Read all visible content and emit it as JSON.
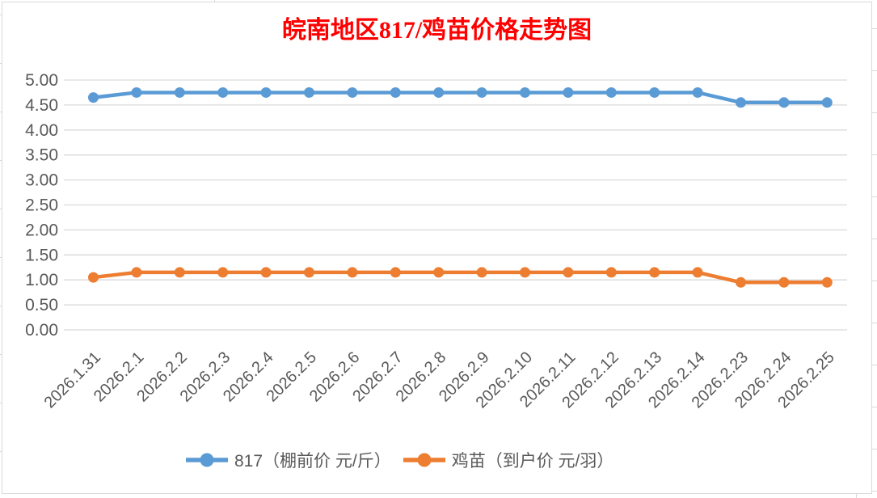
{
  "chart_data": {
    "type": "line",
    "title": "皖南地区817/鸡苗价格走势图",
    "title_color": "#FF0000",
    "categories": [
      "2026.1.31",
      "2026.2.1",
      "2026.2.2",
      "2026.2.3",
      "2026.2.4",
      "2026.2.5",
      "2026.2.6",
      "2026.2.7",
      "2026.2.8",
      "2026.2.9",
      "2026.2.10",
      "2026.2.11",
      "2026.2.12",
      "2026.2.13",
      "2026.2.14",
      "2026.2.23",
      "2026.2.24",
      "2026.2.25"
    ],
    "series": [
      {
        "name": "817（棚前价 元/斤）",
        "color": "#5B9BD5",
        "values": [
          4.65,
          4.75,
          4.75,
          4.75,
          4.75,
          4.75,
          4.75,
          4.75,
          4.75,
          4.75,
          4.75,
          4.75,
          4.75,
          4.75,
          4.75,
          4.55,
          4.55,
          4.55
        ]
      },
      {
        "name": "鸡苗（到户价 元/羽）",
        "color": "#ED7D31",
        "values": [
          1.05,
          1.15,
          1.15,
          1.15,
          1.15,
          1.15,
          1.15,
          1.15,
          1.15,
          1.15,
          1.15,
          1.15,
          1.15,
          1.15,
          1.15,
          0.95,
          0.95,
          0.95
        ]
      }
    ],
    "ylim": [
      0,
      5
    ],
    "y_ticks": [
      "0.00",
      "0.50",
      "1.00",
      "1.50",
      "2.00",
      "2.50",
      "3.00",
      "3.50",
      "4.00",
      "4.50",
      "5.00"
    ],
    "grid": true,
    "gridline_color": "#D9D9D9",
    "axis_label_color": "#595959",
    "legend_position": "bottom",
    "xlabel": "",
    "ylabel": ""
  }
}
